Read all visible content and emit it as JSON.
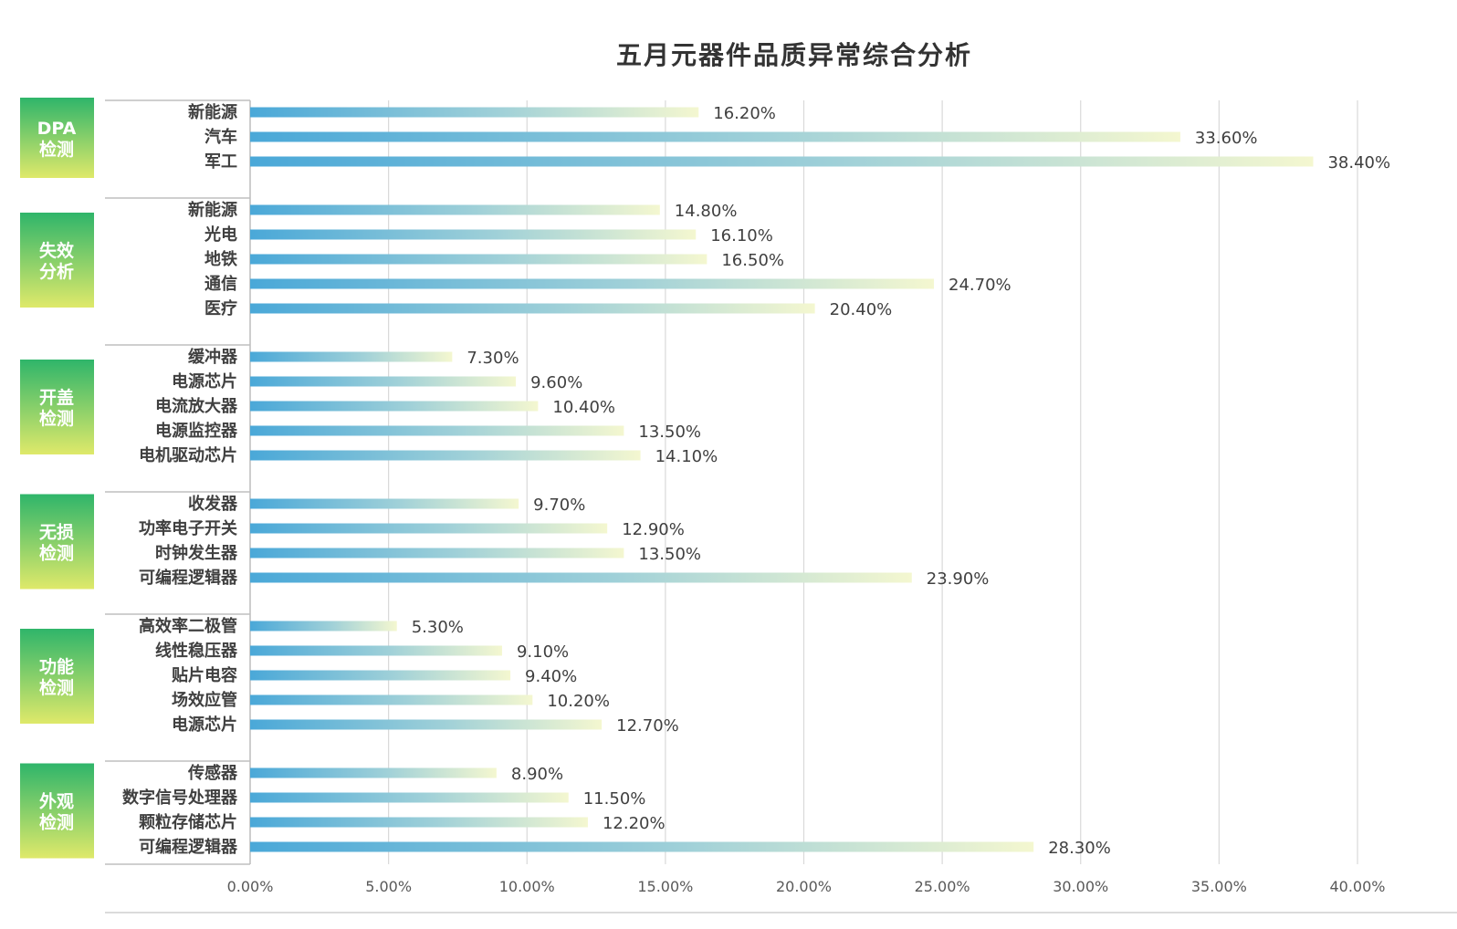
{
  "chart_data": {
    "type": "bar",
    "orientation": "horizontal",
    "title": "五月元器件品质异常综合分析",
    "xlim": [
      0,
      40
    ],
    "x_ticks": [
      "0.00%",
      "5.00%",
      "10.00%",
      "15.00%",
      "20.00%",
      "25.00%",
      "30.00%",
      "35.00%",
      "40.00%"
    ],
    "x_tick_values": [
      0,
      5,
      10,
      15,
      20,
      25,
      30,
      35,
      40
    ],
    "grid": true,
    "groups": [
      {
        "label_lines": [
          "DPA",
          "检测"
        ],
        "items": [
          {
            "category": "新能源",
            "value": 16.2,
            "label": "16.20%"
          },
          {
            "category": "汽车",
            "value": 33.6,
            "label": "33.60%"
          },
          {
            "category": "军工",
            "value": 38.4,
            "label": "38.40%"
          }
        ]
      },
      {
        "label_lines": [
          "失效",
          "分析"
        ],
        "items": [
          {
            "category": "新能源",
            "value": 14.8,
            "label": "14.80%"
          },
          {
            "category": "光电",
            "value": 16.1,
            "label": "16.10%"
          },
          {
            "category": "地铁",
            "value": 16.5,
            "label": "16.50%"
          },
          {
            "category": "通信",
            "value": 24.7,
            "label": "24.70%"
          },
          {
            "category": "医疗",
            "value": 20.4,
            "label": "20.40%"
          }
        ]
      },
      {
        "label_lines": [
          "开盖",
          "检测"
        ],
        "items": [
          {
            "category": "缓冲器",
            "value": 7.3,
            "label": "7.30%"
          },
          {
            "category": "电源芯片",
            "value": 9.6,
            "label": "9.60%"
          },
          {
            "category": "电流放大器",
            "value": 10.4,
            "label": "10.40%"
          },
          {
            "category": "电源监控器",
            "value": 13.5,
            "label": "13.50%"
          },
          {
            "category": "电机驱动芯片",
            "value": 14.1,
            "label": "14.10%"
          }
        ]
      },
      {
        "label_lines": [
          "无损",
          "检测"
        ],
        "items": [
          {
            "category": "收发器",
            "value": 9.7,
            "label": "9.70%"
          },
          {
            "category": "功率电子开关",
            "value": 12.9,
            "label": "12.90%"
          },
          {
            "category": "时钟发生器",
            "value": 13.5,
            "label": "13.50%"
          },
          {
            "category": "可编程逻辑器",
            "value": 23.9,
            "label": "23.90%"
          }
        ]
      },
      {
        "label_lines": [
          "功能",
          "检测"
        ],
        "items": [
          {
            "category": "高效率二极管",
            "value": 5.3,
            "label": "5.30%"
          },
          {
            "category": "线性稳压器",
            "value": 9.1,
            "label": "9.10%"
          },
          {
            "category": "贴片电容",
            "value": 9.4,
            "label": "9.40%"
          },
          {
            "category": "场效应管",
            "value": 10.2,
            "label": "10.20%"
          },
          {
            "category": "电源芯片",
            "value": 12.7,
            "label": "12.70%"
          }
        ]
      },
      {
        "label_lines": [
          "外观",
          "检测"
        ],
        "items": [
          {
            "category": "传感器",
            "value": 8.9,
            "label": "8.90%"
          },
          {
            "category": "数字信号处理器",
            "value": 11.5,
            "label": "11.50%"
          },
          {
            "category": "颗粒存储芯片",
            "value": 12.2,
            "label": "12.20%"
          },
          {
            "category": "可编程逻辑器",
            "value": 28.3,
            "label": "28.30%"
          }
        ]
      }
    ]
  },
  "colors": {
    "bar_start": "#4aa8d8",
    "bar_end": "#f4f7d0",
    "group_box_top": "#2fb56a",
    "group_box_bottom": "#dfe96a"
  }
}
